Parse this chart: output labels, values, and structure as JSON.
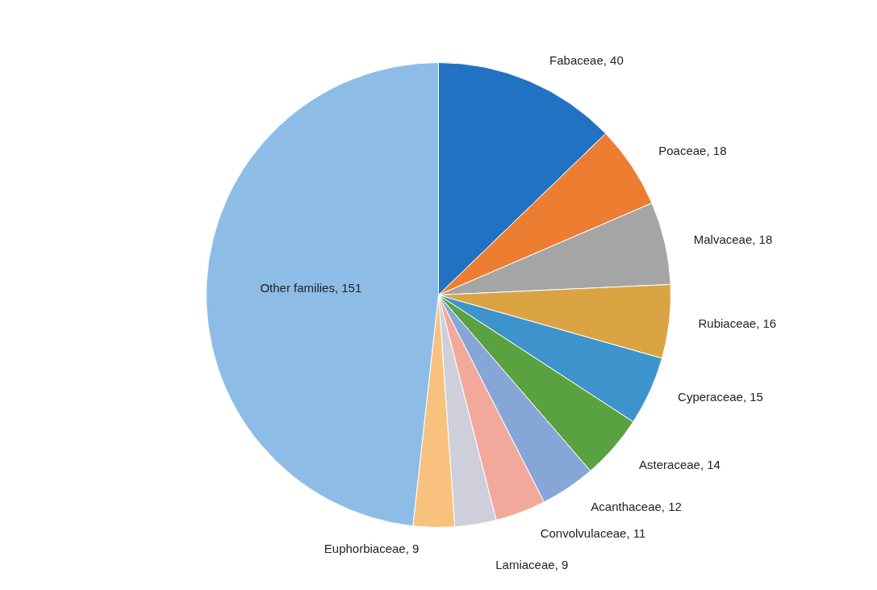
{
  "chart_data": {
    "type": "pie",
    "categories": [
      "Fabaceae",
      "Poaceae",
      "Malvaceae",
      "Rubiaceae",
      "Cyperaceae",
      "Asteraceae",
      "Acanthaceae",
      "Convolvulaceae",
      "Lamiaceae",
      "Euphorbiaceae",
      "Other families"
    ],
    "values": [
      40,
      18,
      18,
      16,
      15,
      14,
      12,
      11,
      9,
      9,
      151
    ],
    "colors": [
      "#2272c3",
      "#ed7d31",
      "#a5a5a5",
      "#d9a441",
      "#3d94cc",
      "#5aa13f",
      "#87a6d8",
      "#f2a99c",
      "#cfcfdb",
      "#f8c27e",
      "#8dbde7"
    ],
    "value_labels": [
      ", 40",
      ", 18",
      ", 18",
      ", 16",
      ", 15",
      ", 14",
      ", 12",
      ", 11",
      ", 9",
      ", 9",
      ", 151"
    ]
  }
}
